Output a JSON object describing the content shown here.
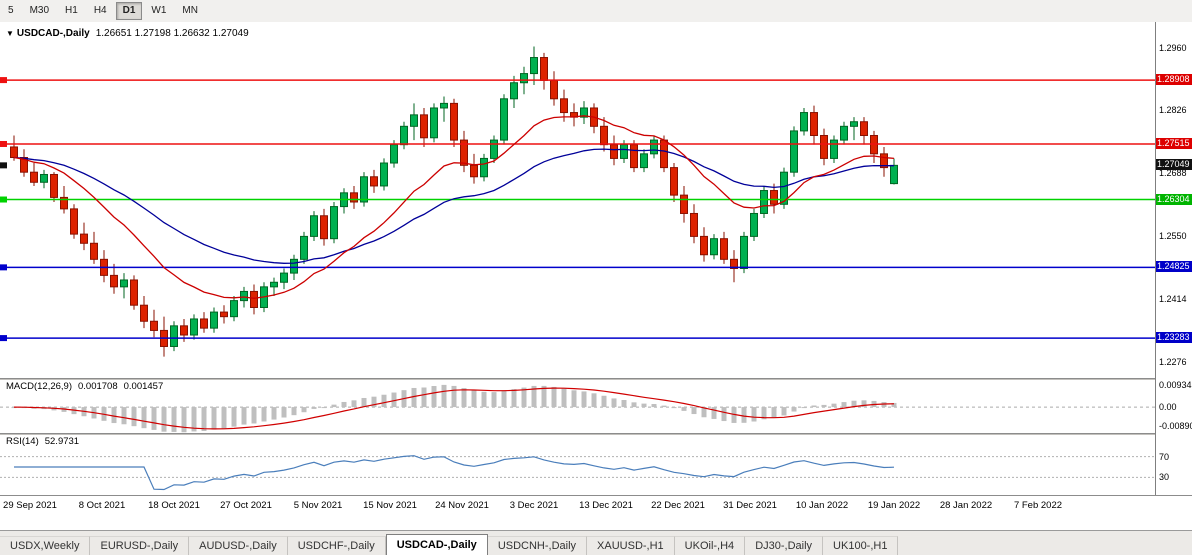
{
  "app": {
    "dropdown_glyph": "▼",
    "title_symbol": "USDCAD-,Daily",
    "ohlc": "1.26651 1.27198 1.26632 1.27049"
  },
  "toolbar": {
    "timeframes": [
      "5",
      "M30",
      "H1",
      "H4",
      "D1",
      "W1",
      "MN"
    ],
    "active": "D1"
  },
  "price_axis": {
    "plain_ticks": [
      "1.2960",
      "1.2826",
      "1.2688",
      "1.2550",
      "1.2414",
      "1.2276"
    ],
    "tags": [
      {
        "label": "1.28908",
        "price": 1.28908,
        "bg": "#dd0000",
        "current": false
      },
      {
        "label": "1.27515",
        "price": 1.27515,
        "bg": "#dd0000",
        "current": false
      },
      {
        "label": "1.27049",
        "price": 1.27049,
        "bg": "#111111",
        "current": true
      },
      {
        "label": "1.26304",
        "price": 1.26304,
        "bg": "#00b400",
        "current": false
      },
      {
        "label": "1.24825",
        "price": 1.24825,
        "bg": "#0000c8",
        "current": false
      },
      {
        "label": "1.23283",
        "price": 1.23283,
        "bg": "#0000c8",
        "current": false
      }
    ]
  },
  "levels": [
    {
      "price": 1.28908,
      "color": "#ee1111"
    },
    {
      "price": 1.27515,
      "color": "#ee1111"
    },
    {
      "price": 1.26304,
      "color": "#00d200"
    },
    {
      "price": 1.24825,
      "color": "#0000cc"
    },
    {
      "price": 1.23283,
      "color": "#0000cc"
    }
  ],
  "chart_data": {
    "type": "candlestick",
    "symbol": "USDCAD-,Daily",
    "price_range": {
      "min": 1.225,
      "max": 1.3
    },
    "x_labels": [
      "29 Sep 2021",
      "8 Oct 2021",
      "18 Oct 2021",
      "27 Oct 2021",
      "5 Nov 2021",
      "15 Nov 2021",
      "24 Nov 2021",
      "3 Dec 2021",
      "13 Dec 2021",
      "22 Dec 2021",
      "31 Dec 2021",
      "10 Jan 2022",
      "19 Jan 2022",
      "28 Jan 2022",
      "7 Feb 2022"
    ],
    "up_color": "#00b050",
    "up_stroke": "#006622",
    "down_color": "#dd2200",
    "down_stroke": "#881100",
    "ma_fast_color": "#cc0000",
    "ma_fast_period": 15,
    "ma_slow_color": "#000099",
    "ma_slow_period": 34,
    "candles": [
      [
        1.2745,
        1.277,
        1.2715,
        1.2722
      ],
      [
        1.2722,
        1.274,
        1.268,
        1.269
      ],
      [
        1.269,
        1.271,
        1.266,
        1.2668
      ],
      [
        1.2668,
        1.2695,
        1.2655,
        1.2685
      ],
      [
        1.2685,
        1.269,
        1.2625,
        1.2635
      ],
      [
        1.2635,
        1.266,
        1.26,
        1.261
      ],
      [
        1.261,
        1.262,
        1.2545,
        1.2555
      ],
      [
        1.2555,
        1.258,
        1.252,
        1.2535
      ],
      [
        1.2535,
        1.256,
        1.249,
        1.25
      ],
      [
        1.25,
        1.252,
        1.245,
        1.2465
      ],
      [
        1.2465,
        1.249,
        1.2425,
        1.244
      ],
      [
        1.244,
        1.247,
        1.2415,
        1.2455
      ],
      [
        1.2455,
        1.2465,
        1.239,
        1.24
      ],
      [
        1.24,
        1.242,
        1.235,
        1.2365
      ],
      [
        1.2365,
        1.239,
        1.233,
        1.2345
      ],
      [
        1.2345,
        1.2375,
        1.2288,
        1.231
      ],
      [
        1.231,
        1.2365,
        1.23,
        1.2355
      ],
      [
        1.2355,
        1.237,
        1.232,
        1.2335
      ],
      [
        1.2335,
        1.238,
        1.2325,
        1.237
      ],
      [
        1.237,
        1.2385,
        1.234,
        1.235
      ],
      [
        1.235,
        1.2395,
        1.234,
        1.2385
      ],
      [
        1.2385,
        1.24,
        1.236,
        1.2375
      ],
      [
        1.2375,
        1.242,
        1.2365,
        1.241
      ],
      [
        1.241,
        1.244,
        1.2395,
        1.243
      ],
      [
        1.243,
        1.2445,
        1.238,
        1.2395
      ],
      [
        1.2395,
        1.245,
        1.2385,
        1.244
      ],
      [
        1.244,
        1.246,
        1.242,
        1.245
      ],
      [
        1.245,
        1.248,
        1.2435,
        1.247
      ],
      [
        1.247,
        1.251,
        1.2455,
        1.25
      ],
      [
        1.25,
        1.256,
        1.249,
        1.255
      ],
      [
        1.255,
        1.2605,
        1.254,
        1.2595
      ],
      [
        1.2595,
        1.261,
        1.253,
        1.2545
      ],
      [
        1.2545,
        1.2625,
        1.2535,
        1.2615
      ],
      [
        1.2615,
        1.2655,
        1.26,
        1.2645
      ],
      [
        1.2645,
        1.266,
        1.261,
        1.2625
      ],
      [
        1.2625,
        1.269,
        1.2615,
        1.268
      ],
      [
        1.268,
        1.2695,
        1.2645,
        1.266
      ],
      [
        1.266,
        1.272,
        1.265,
        1.271
      ],
      [
        1.271,
        1.276,
        1.27,
        1.275
      ],
      [
        1.275,
        1.28,
        1.274,
        1.279
      ],
      [
        1.279,
        1.284,
        1.276,
        1.2815
      ],
      [
        1.2815,
        1.283,
        1.2745,
        1.2765
      ],
      [
        1.2765,
        1.284,
        1.2755,
        1.283
      ],
      [
        1.283,
        1.2855,
        1.28,
        1.284
      ],
      [
        1.284,
        1.285,
        1.2745,
        1.276
      ],
      [
        1.276,
        1.278,
        1.269,
        1.2705
      ],
      [
        1.2705,
        1.273,
        1.2665,
        1.268
      ],
      [
        1.268,
        1.273,
        1.267,
        1.272
      ],
      [
        1.272,
        1.277,
        1.271,
        1.276
      ],
      [
        1.276,
        1.286,
        1.275,
        1.285
      ],
      [
        1.285,
        1.29,
        1.283,
        1.2885
      ],
      [
        1.2885,
        1.292,
        1.286,
        1.2905
      ],
      [
        1.2905,
        1.2964,
        1.288,
        1.294
      ],
      [
        1.294,
        1.295,
        1.287,
        1.289
      ],
      [
        1.289,
        1.291,
        1.2835,
        1.285
      ],
      [
        1.285,
        1.287,
        1.28,
        1.282
      ],
      [
        1.282,
        1.284,
        1.279,
        1.281
      ],
      [
        1.281,
        1.2845,
        1.2795,
        1.283
      ],
      [
        1.283,
        1.284,
        1.2775,
        1.279
      ],
      [
        1.279,
        1.281,
        1.2735,
        1.275
      ],
      [
        1.275,
        1.277,
        1.2705,
        1.272
      ],
      [
        1.272,
        1.276,
        1.271,
        1.275
      ],
      [
        1.275,
        1.276,
        1.269,
        1.27
      ],
      [
        1.27,
        1.274,
        1.269,
        1.273
      ],
      [
        1.273,
        1.277,
        1.272,
        1.276
      ],
      [
        1.276,
        1.277,
        1.269,
        1.27
      ],
      [
        1.27,
        1.271,
        1.2625,
        1.264
      ],
      [
        1.264,
        1.266,
        1.258,
        1.26
      ],
      [
        1.26,
        1.262,
        1.2535,
        1.255
      ],
      [
        1.255,
        1.257,
        1.2495,
        1.251
      ],
      [
        1.251,
        1.2555,
        1.25,
        1.2545
      ],
      [
        1.2545,
        1.256,
        1.249,
        1.25
      ],
      [
        1.25,
        1.252,
        1.245,
        1.248
      ],
      [
        1.248,
        1.256,
        1.247,
        1.255
      ],
      [
        1.255,
        1.261,
        1.254,
        1.26
      ],
      [
        1.26,
        1.266,
        1.259,
        1.265
      ],
      [
        1.265,
        1.2665,
        1.26,
        1.262
      ],
      [
        1.262,
        1.27,
        1.261,
        1.269
      ],
      [
        1.269,
        1.279,
        1.268,
        1.278
      ],
      [
        1.278,
        1.283,
        1.277,
        1.282
      ],
      [
        1.282,
        1.2835,
        1.275,
        1.277
      ],
      [
        1.277,
        1.2785,
        1.2705,
        1.272
      ],
      [
        1.272,
        1.277,
        1.271,
        1.276
      ],
      [
        1.276,
        1.28,
        1.275,
        1.279
      ],
      [
        1.279,
        1.281,
        1.276,
        1.28
      ],
      [
        1.28,
        1.281,
        1.275,
        1.277
      ],
      [
        1.277,
        1.278,
        1.271,
        1.273
      ],
      [
        1.273,
        1.2745,
        1.268,
        1.27
      ],
      [
        1.26651,
        1.27198,
        1.26632,
        1.27049
      ]
    ]
  },
  "macd": {
    "name": "MACD(12,26,9)",
    "value_main": "0.001708",
    "value_signal": "0.001457",
    "axis_max": "0.009345",
    "axis_zero": "0.00",
    "axis_min": "-0.00890",
    "range_max": 0.009345,
    "range_min": -0.0089,
    "hist_color": "#bfbfbf",
    "signal_color": "#d00000"
  },
  "rsi": {
    "name": "RSI(14)",
    "value": "52.9731",
    "level_high": "70",
    "level_low": "30",
    "line_color": "#4a7ebb"
  },
  "tabs": {
    "items": [
      "USDX,Weekly",
      "EURUSD-,Daily",
      "AUDUSD-,Daily",
      "USDCHF-,Daily",
      "USDCAD-,Daily",
      "USDCNH-,Daily",
      "XAUUSD-,H1",
      "UKOil-,H4",
      "DJ30-,Daily",
      "UK100-,H1"
    ],
    "active_index": 4
  }
}
